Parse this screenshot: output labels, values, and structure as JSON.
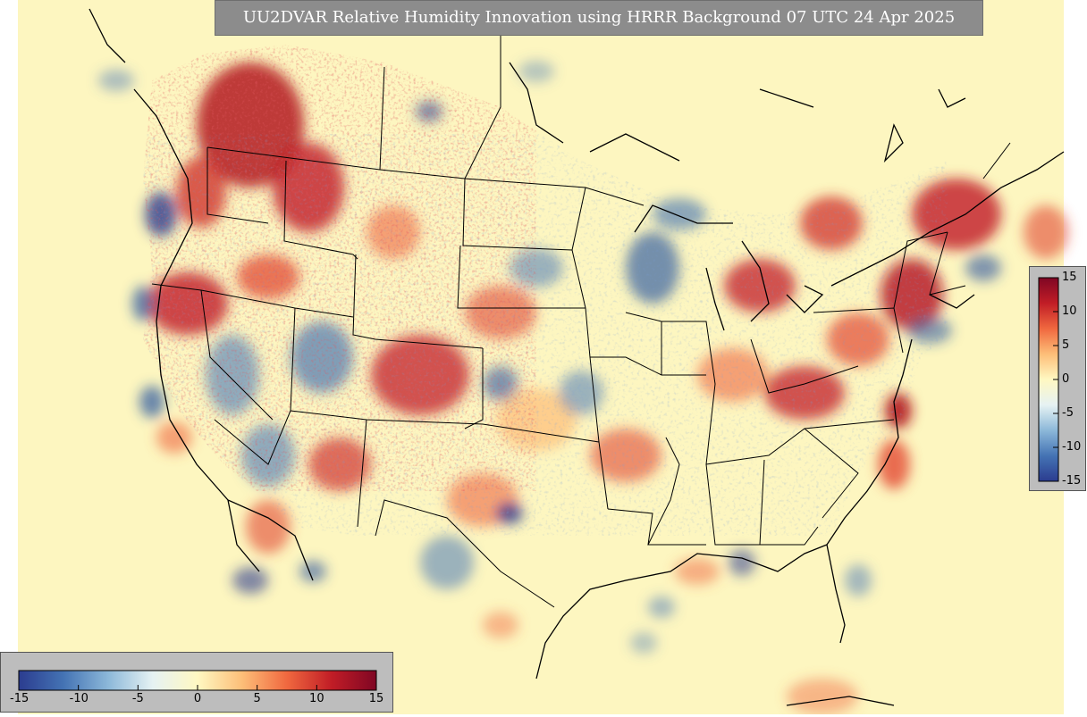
{
  "title": "UU2DVAR Relative Humidity Innovation using HRRR Background 07 UTC 24 Apr 2025",
  "colorbar": {
    "min": -15,
    "max": 15,
    "ticks": [
      "-15",
      "-10",
      "-5",
      "0",
      "5",
      "10",
      "15"
    ],
    "colors": [
      "#2b3c8f",
      "#4473b4",
      "#8cb8d9",
      "#e6f2f3",
      "#fff8c2",
      "#fdbe78",
      "#f0683f",
      "#c11d26",
      "#7f0624"
    ]
  },
  "map": {
    "ocean_color": "#fdf6c0",
    "border_color": "#000000"
  }
}
